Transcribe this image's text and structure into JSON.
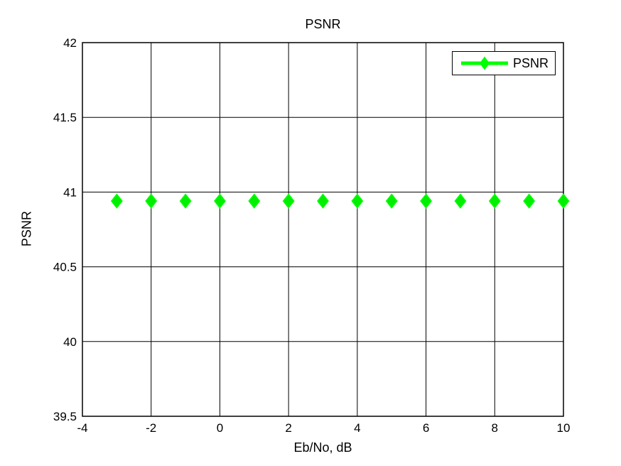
{
  "chart_data": {
    "type": "scatter",
    "title": "PSNR",
    "xlabel": "Eb/No, dB",
    "ylabel": "PSNR",
    "xlim": [
      -4,
      10
    ],
    "ylim": [
      39.5,
      42
    ],
    "xticks": [
      -4,
      -2,
      0,
      2,
      4,
      6,
      8,
      10
    ],
    "yticks": [
      39.5,
      40,
      40.5,
      41,
      41.5,
      42
    ],
    "grid": true,
    "grid_color": "#000000",
    "axis_color": "#000000",
    "background_color": "#ffffff",
    "series": [
      {
        "name": "PSNR",
        "x": [
          -3,
          -2,
          -1,
          0,
          1,
          2,
          3,
          4,
          5,
          6,
          7,
          8,
          9,
          10
        ],
        "y": [
          40.94,
          40.94,
          40.94,
          40.94,
          40.94,
          40.94,
          40.94,
          40.94,
          40.94,
          40.94,
          40.94,
          40.94,
          40.94,
          40.94
        ],
        "color": "#00ff00",
        "marker_face": "#00ee00",
        "marker": "diamond",
        "line_style": "none"
      }
    ],
    "legend": {
      "position": "top-right",
      "entries": [
        {
          "label": "PSNR",
          "color": "#00ff00",
          "marker": "diamond"
        }
      ]
    }
  }
}
